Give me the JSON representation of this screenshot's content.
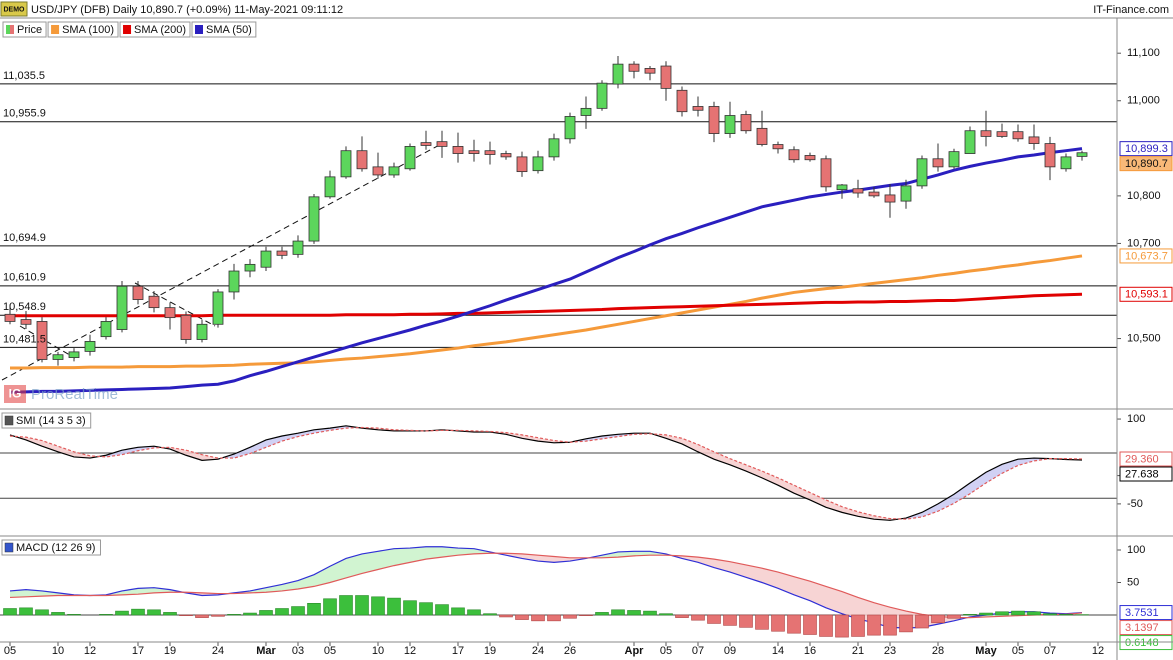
{
  "chart_data": [
    {
      "type": "candlestick",
      "badge": "DEMO",
      "title": "USD/JPY (DFB) Daily 10,890.7 (+0.09%) 11-May-2021 09:11:12",
      "source": "IT-Finance.com",
      "watermark_logo": "IG",
      "watermark": "ProRealTime",
      "name": "Price",
      "last_label": "10,890.7",
      "up_color": "#5cd65c",
      "down_color": "#e57373",
      "categories": [
        "05",
        null,
        null,
        "10",
        null,
        "12",
        null,
        null,
        "17",
        null,
        "19",
        null,
        null,
        "24",
        null,
        null,
        "Mar",
        null,
        "03",
        null,
        "05",
        null,
        null,
        "10",
        null,
        "12",
        null,
        null,
        "17",
        null,
        "19",
        null,
        null,
        "24",
        null,
        "26",
        null,
        null,
        null,
        "Apr",
        null,
        "05",
        null,
        "07",
        null,
        "09",
        null,
        null,
        "14",
        null,
        "16",
        null,
        null,
        "21",
        null,
        "23",
        null,
        null,
        "28",
        null,
        null,
        "May",
        null,
        "05",
        null,
        "07",
        null,
        null,
        "12"
      ],
      "open": [
        10551,
        10540,
        10536,
        10456,
        10460,
        10473,
        10504,
        10519,
        10610,
        10589,
        10565,
        10549,
        10498,
        10530,
        10598,
        10642,
        10650,
        10684,
        10677,
        10705,
        10798,
        10840,
        10895,
        10861,
        10844,
        10857,
        10912,
        10914,
        10904,
        10895,
        10895,
        10889,
        10882,
        10853,
        10882,
        10920,
        10969,
        10984,
        11035,
        11077,
        11068,
        11073,
        11022,
        10988,
        10988,
        10931,
        10971,
        10942,
        10908,
        10897,
        10885,
        10878,
        10813,
        10815,
        10808,
        10802,
        10789,
        10821,
        10878,
        10861,
        10889,
        10937,
        10935,
        10935,
        10924,
        10910,
        10857,
        10883,
        null
      ],
      "high": [
        10572,
        10558,
        10545,
        10472,
        10480,
        10508,
        10545,
        10621,
        10621,
        10600,
        10576,
        10557,
        10540,
        10604,
        10657,
        10667,
        10693,
        10693,
        10717,
        10804,
        10853,
        10904,
        10925,
        10891,
        10870,
        10910,
        10937,
        10937,
        10933,
        10918,
        10914,
        10895,
        10893,
        10895,
        10931,
        10975,
        11009,
        11043,
        11094,
        11083,
        11073,
        11083,
        11030,
        11009,
        10998,
        10998,
        10979,
        10979,
        10914,
        10904,
        10891,
        10885,
        10825,
        10834,
        10819,
        10825,
        10834,
        10885,
        10910,
        10899,
        10946,
        10979,
        10952,
        10950,
        10950,
        10924,
        10889,
        10895,
        null
      ],
      "low": [
        10530,
        10520,
        10450,
        10443,
        10452,
        10464,
        10498,
        10513,
        10572,
        10555,
        10519,
        10489,
        10492,
        10523,
        10582,
        10629,
        10642,
        10667,
        10670,
        10699,
        10794,
        10836,
        10851,
        10836,
        10838,
        10853,
        10897,
        10880,
        10870,
        10872,
        10866,
        10876,
        10840,
        10847,
        10874,
        10910,
        10941,
        10979,
        11026,
        11047,
        11043,
        11000,
        10967,
        10967,
        10913,
        10922,
        10931,
        10904,
        10889,
        10870,
        10872,
        10809,
        10794,
        10796,
        10796,
        10754,
        10773,
        10815,
        10851,
        10857,
        10891,
        10904,
        10922,
        10914,
        10897,
        10833,
        10851,
        10874,
        null
      ],
      "close": [
        10536,
        10530,
        10456,
        10466,
        10472,
        10494,
        10536,
        10610,
        10582,
        10565,
        10544,
        10498,
        10530,
        10598,
        10642,
        10656,
        10684,
        10675,
        10705,
        10798,
        10840,
        10895,
        10857,
        10844,
        10861,
        10904,
        10906,
        10904,
        10889,
        10889,
        10887,
        10882,
        10851,
        10882,
        10920,
        10967,
        10984,
        11037,
        11077,
        11062,
        11058,
        11026,
        10977,
        10980,
        10931,
        10969,
        10937,
        10908,
        10899,
        10876,
        10876,
        10819,
        10823,
        10806,
        10800,
        10787,
        10821,
        10878,
        10861,
        10893,
        10937,
        10925,
        10925,
        10920,
        10910,
        10861,
        10882,
        10890.7,
        null
      ],
      "series": [
        {
          "name": "SMA (100)",
          "color": "#f59a3a",
          "last_label": "10,673.7",
          "values": [
            10438,
            10438,
            10439,
            10439,
            10439,
            10440,
            10440,
            10440,
            10441,
            10441,
            10441,
            10442,
            10442,
            10443,
            10444,
            10446,
            10447,
            10448,
            10449,
            10451,
            10454,
            10457,
            10459,
            10462,
            10465,
            10468,
            10472,
            10476,
            10480,
            10485,
            10489,
            10493,
            10498,
            10503,
            10508,
            10513,
            10518,
            10524,
            10530,
            10536,
            10542,
            10548,
            10554,
            10560,
            10566,
            10572,
            10578,
            10585,
            10591,
            10597,
            10601,
            10605,
            10608,
            10612,
            10616,
            10620,
            10624,
            10628,
            10633,
            10637,
            10642,
            10646,
            10651,
            10655,
            10660,
            10664,
            10669,
            10673.7,
            null
          ]
        },
        {
          "name": "SMA (200)",
          "color": "#e00000",
          "last_label": "10,593.1",
          "values": [
            10548,
            10548,
            10548,
            10548,
            10548,
            10548,
            10548,
            10548,
            10548,
            10548,
            10548,
            10548,
            10548,
            10549,
            10549,
            10549,
            10549,
            10549,
            10549,
            10549,
            10549,
            10550,
            10550,
            10550,
            10550,
            10551,
            10551,
            10552,
            10553,
            10553,
            10554,
            10555,
            10556,
            10557,
            10558,
            10559,
            10560,
            10561,
            10563,
            10564,
            10565,
            10566,
            10567,
            10568,
            10569,
            10570,
            10571,
            10572,
            10573,
            10574,
            10575,
            10576,
            10576,
            10577,
            10577,
            10578,
            10578,
            10579,
            10580,
            10580,
            10582,
            10584,
            10586,
            10588,
            10590,
            10591,
            10592,
            10593.1,
            null
          ]
        },
        {
          "name": "SMA (50)",
          "color": "#2a1fbf",
          "last_label": "10,899.3",
          "values": [
            10387,
            10388,
            10389,
            10389,
            10390,
            10391,
            10392,
            10393,
            10394,
            10395,
            10396,
            10399,
            10402,
            10404,
            10411,
            10422,
            10431,
            10441,
            10451,
            10461,
            10471,
            10481,
            10491,
            10500,
            10509,
            10518,
            10528,
            10537,
            10547,
            10558,
            10569,
            10581,
            10592,
            10603,
            10614,
            10625,
            10640,
            10655,
            10670,
            10683,
            10697,
            10710,
            10721,
            10733,
            10744,
            10755,
            10766,
            10777,
            10784,
            10791,
            10798,
            10803,
            10808,
            10812,
            10817,
            10822,
            10826,
            10835,
            10844,
            10854,
            10862,
            10869,
            10875,
            10882,
            10886,
            10891,
            10895,
            10899.3,
            null
          ]
        }
      ],
      "ylim": [
        10354,
        11174
      ],
      "yticks": [
        {
          "value": 11100,
          "label": "11,100"
        },
        {
          "value": 11000,
          "label": "11,000"
        },
        {
          "value": 10800,
          "label": "10,800"
        },
        {
          "value": 10700,
          "label": "10,700"
        },
        {
          "value": 10500,
          "label": "10,500"
        }
      ],
      "levels": [
        {
          "value": 11035.5,
          "label": "11,035.5"
        },
        {
          "value": 10955.9,
          "label": "10,955.9"
        },
        {
          "value": 10694.9,
          "label": "10,694.9"
        },
        {
          "value": 10610.9,
          "label": "10,610.9"
        },
        {
          "value": 10548.9,
          "label": "10,548.9"
        },
        {
          "value": 10481.5,
          "label": "10,481.5"
        }
      ]
    },
    {
      "type": "smi",
      "title": "SMI (14 3 5 3)",
      "series": [
        {
          "color": "#000000",
          "last_label": "27.638",
          "values": [
            72,
            63,
            52,
            42,
            33,
            31,
            36,
            45,
            50,
            52,
            47,
            36,
            27,
            29,
            38,
            50,
            63,
            70,
            75,
            81,
            84,
            88,
            84,
            81,
            79,
            79,
            79,
            81,
            79,
            77,
            77,
            73,
            66,
            61,
            58,
            59,
            65,
            70,
            73,
            75,
            75,
            66,
            56,
            42,
            29,
            19,
            8,
            -4,
            -17,
            -31,
            -43,
            -56,
            -65,
            -72,
            -77,
            -79,
            -75,
            -65,
            -50,
            -33,
            -13,
            6,
            20,
            29,
            31,
            30,
            28.5,
            27.638,
            null
          ]
        },
        {
          "color": "#e05a5a",
          "dashed": true,
          "last_label": "29.360",
          "values": [
            70,
            68,
            62,
            52,
            42,
            35,
            33,
            37,
            44,
            49,
            50,
            45,
            37,
            31,
            31,
            39,
            50,
            61,
            69,
            75,
            80,
            84,
            85,
            84,
            81,
            80,
            79,
            80,
            80,
            79,
            78,
            76,
            72,
            67,
            62,
            59,
            61,
            65,
            69,
            73,
            74,
            72,
            66,
            55,
            42,
            30,
            19,
            8,
            -4,
            -17,
            -30,
            -43,
            -55,
            -64,
            -71,
            -76,
            -77,
            -73,
            -63,
            -49,
            -32,
            -13,
            4,
            18,
            26,
            30,
            30,
            29.36,
            null
          ]
        }
      ],
      "fill_above": "#c9c9f2",
      "fill_below": "#f6cccc",
      "ylim": [
        -105,
        116
      ],
      "yticks": [
        100,
        0,
        -50
      ],
      "levels": [
        40,
        -40
      ]
    },
    {
      "type": "macd",
      "title": "MACD (12 26 9)",
      "series": [
        {
          "color": "#2f2fd6",
          "last_label": "3.7531",
          "values": [
            37,
            39,
            37,
            34,
            31,
            30,
            31,
            37,
            41,
            42,
            39,
            34,
            30,
            31,
            34,
            37,
            42,
            47,
            53,
            62,
            75,
            87,
            94,
            98,
            102,
            103,
            105,
            105,
            103,
            102,
            97,
            92,
            87,
            83,
            81,
            83,
            87,
            92,
            97,
            98,
            98,
            94,
            87,
            81,
            73,
            66,
            58,
            50,
            41,
            31,
            22,
            11,
            2,
            -6,
            -12,
            -19,
            -20,
            -19,
            -14,
            -9,
            -3,
            0,
            3,
            5,
            5,
            3,
            2,
            3.7531,
            null
          ]
        },
        {
          "color": "#e05a5a",
          "last_label": "3.1397",
          "values": [
            27,
            28,
            29,
            30,
            30,
            30,
            30,
            31,
            32,
            34,
            35,
            35,
            34,
            33,
            33,
            34,
            35,
            37,
            40,
            44,
            50,
            57,
            64,
            70,
            76,
            81,
            86,
            89,
            92,
            94,
            95,
            95,
            94,
            92,
            90,
            88,
            88,
            88,
            89,
            91,
            92,
            92,
            91,
            89,
            86,
            82,
            77,
            72,
            66,
            59,
            52,
            44,
            36,
            27,
            19,
            12,
            6,
            1,
            -2,
            -4,
            -4,
            -3,
            -2,
            -1,
            0,
            1,
            1,
            3.1397,
            null
          ]
        },
        {
          "color": "#3cbf3c",
          "down_color": "#e57373",
          "bars": true,
          "last_label": "0.6148",
          "values": [
            10,
            11,
            8,
            4,
            1,
            0,
            1,
            6,
            9,
            8,
            4,
            -1,
            -4,
            -2,
            1,
            3,
            7,
            10,
            13,
            18,
            25,
            30,
            30,
            28,
            26,
            22,
            19,
            16,
            11,
            8,
            2,
            -3,
            -7,
            -9,
            -9,
            -5,
            -1,
            4,
            8,
            7,
            6,
            2,
            -4,
            -8,
            -13,
            -16,
            -19,
            -22,
            -25,
            -28,
            -30,
            -33,
            -34,
            -33,
            -31,
            -31,
            -26,
            -20,
            -12,
            -5,
            1,
            3,
            5,
            6,
            5,
            2,
            1,
            0.6148,
            null
          ]
        }
      ],
      "fill_above": "#c9f2c9",
      "fill_below": "#f6cccc",
      "ylim": [
        -40,
        120
      ],
      "yticks": [
        100,
        50
      ]
    }
  ]
}
